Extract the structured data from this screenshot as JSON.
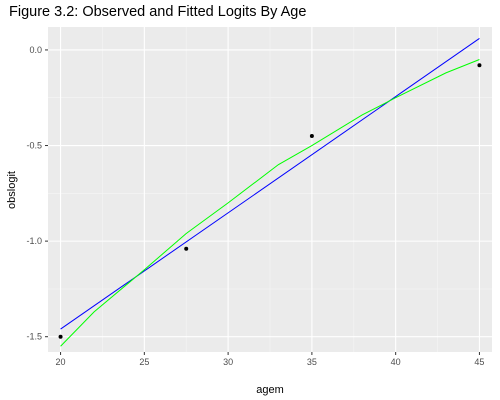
{
  "chart_data": {
    "type": "line",
    "title": "Figure 3.2: Observed and Fitted Logits By Age",
    "xlabel": "agem",
    "ylabel": "obslogit",
    "xlim": [
      19.25,
      45.75
    ],
    "ylim": [
      -1.58,
      0.12
    ],
    "x_ticks": [
      20,
      25,
      30,
      35,
      40,
      45
    ],
    "x_tick_labels": [
      "20",
      "25",
      "30",
      "35",
      "40",
      "45"
    ],
    "y_ticks": [
      -1.5,
      -1.0,
      -0.5,
      0.0
    ],
    "y_tick_labels": [
      "-1.5",
      "-1.0",
      "-0.5",
      "0.0"
    ],
    "grid": true,
    "panel_background": "#ebebeb",
    "legend": "none",
    "points": {
      "color": "#000000",
      "x": [
        20,
        27.5,
        35,
        45
      ],
      "y": [
        -1.5,
        -1.04,
        -0.45,
        -0.08
      ]
    },
    "series": [
      {
        "color": "#0000ff",
        "x": [
          20,
          45
        ],
        "y": [
          -1.46,
          0.06
        ]
      },
      {
        "color": "#00ff00",
        "x": [
          20,
          22,
          25,
          27.5,
          30,
          33,
          35,
          38,
          40,
          43,
          45
        ],
        "y": [
          -1.55,
          -1.37,
          -1.15,
          -0.96,
          -0.8,
          -0.6,
          -0.5,
          -0.34,
          -0.25,
          -0.12,
          -0.05
        ]
      }
    ]
  }
}
